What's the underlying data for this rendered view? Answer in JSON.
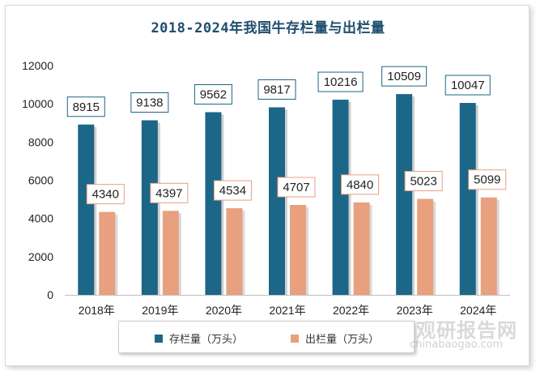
{
  "chart_data": {
    "type": "bar",
    "title": "2018-2024年我国牛存栏量与出栏量",
    "categories": [
      "2018年",
      "2019年",
      "2020年",
      "2021年",
      "2022年",
      "2023年",
      "2024年"
    ],
    "series": [
      {
        "name": "存栏量（万头）",
        "color": "#1c6688",
        "values": [
          8915,
          9138,
          9562,
          9817,
          10216,
          10509,
          10047
        ]
      },
      {
        "name": "出栏量（万头）",
        "color": "#e8a07e",
        "values": [
          4340,
          4397,
          4534,
          4707,
          4840,
          5023,
          5099
        ]
      }
    ],
    "yticks": [
      0,
      2000,
      4000,
      6000,
      8000,
      10000,
      12000
    ],
    "ylim": [
      0,
      12000
    ],
    "legend": "bottom",
    "grid": false
  },
  "watermark": {
    "cn": "观研报告网",
    "en": "chinabaogao.com"
  }
}
